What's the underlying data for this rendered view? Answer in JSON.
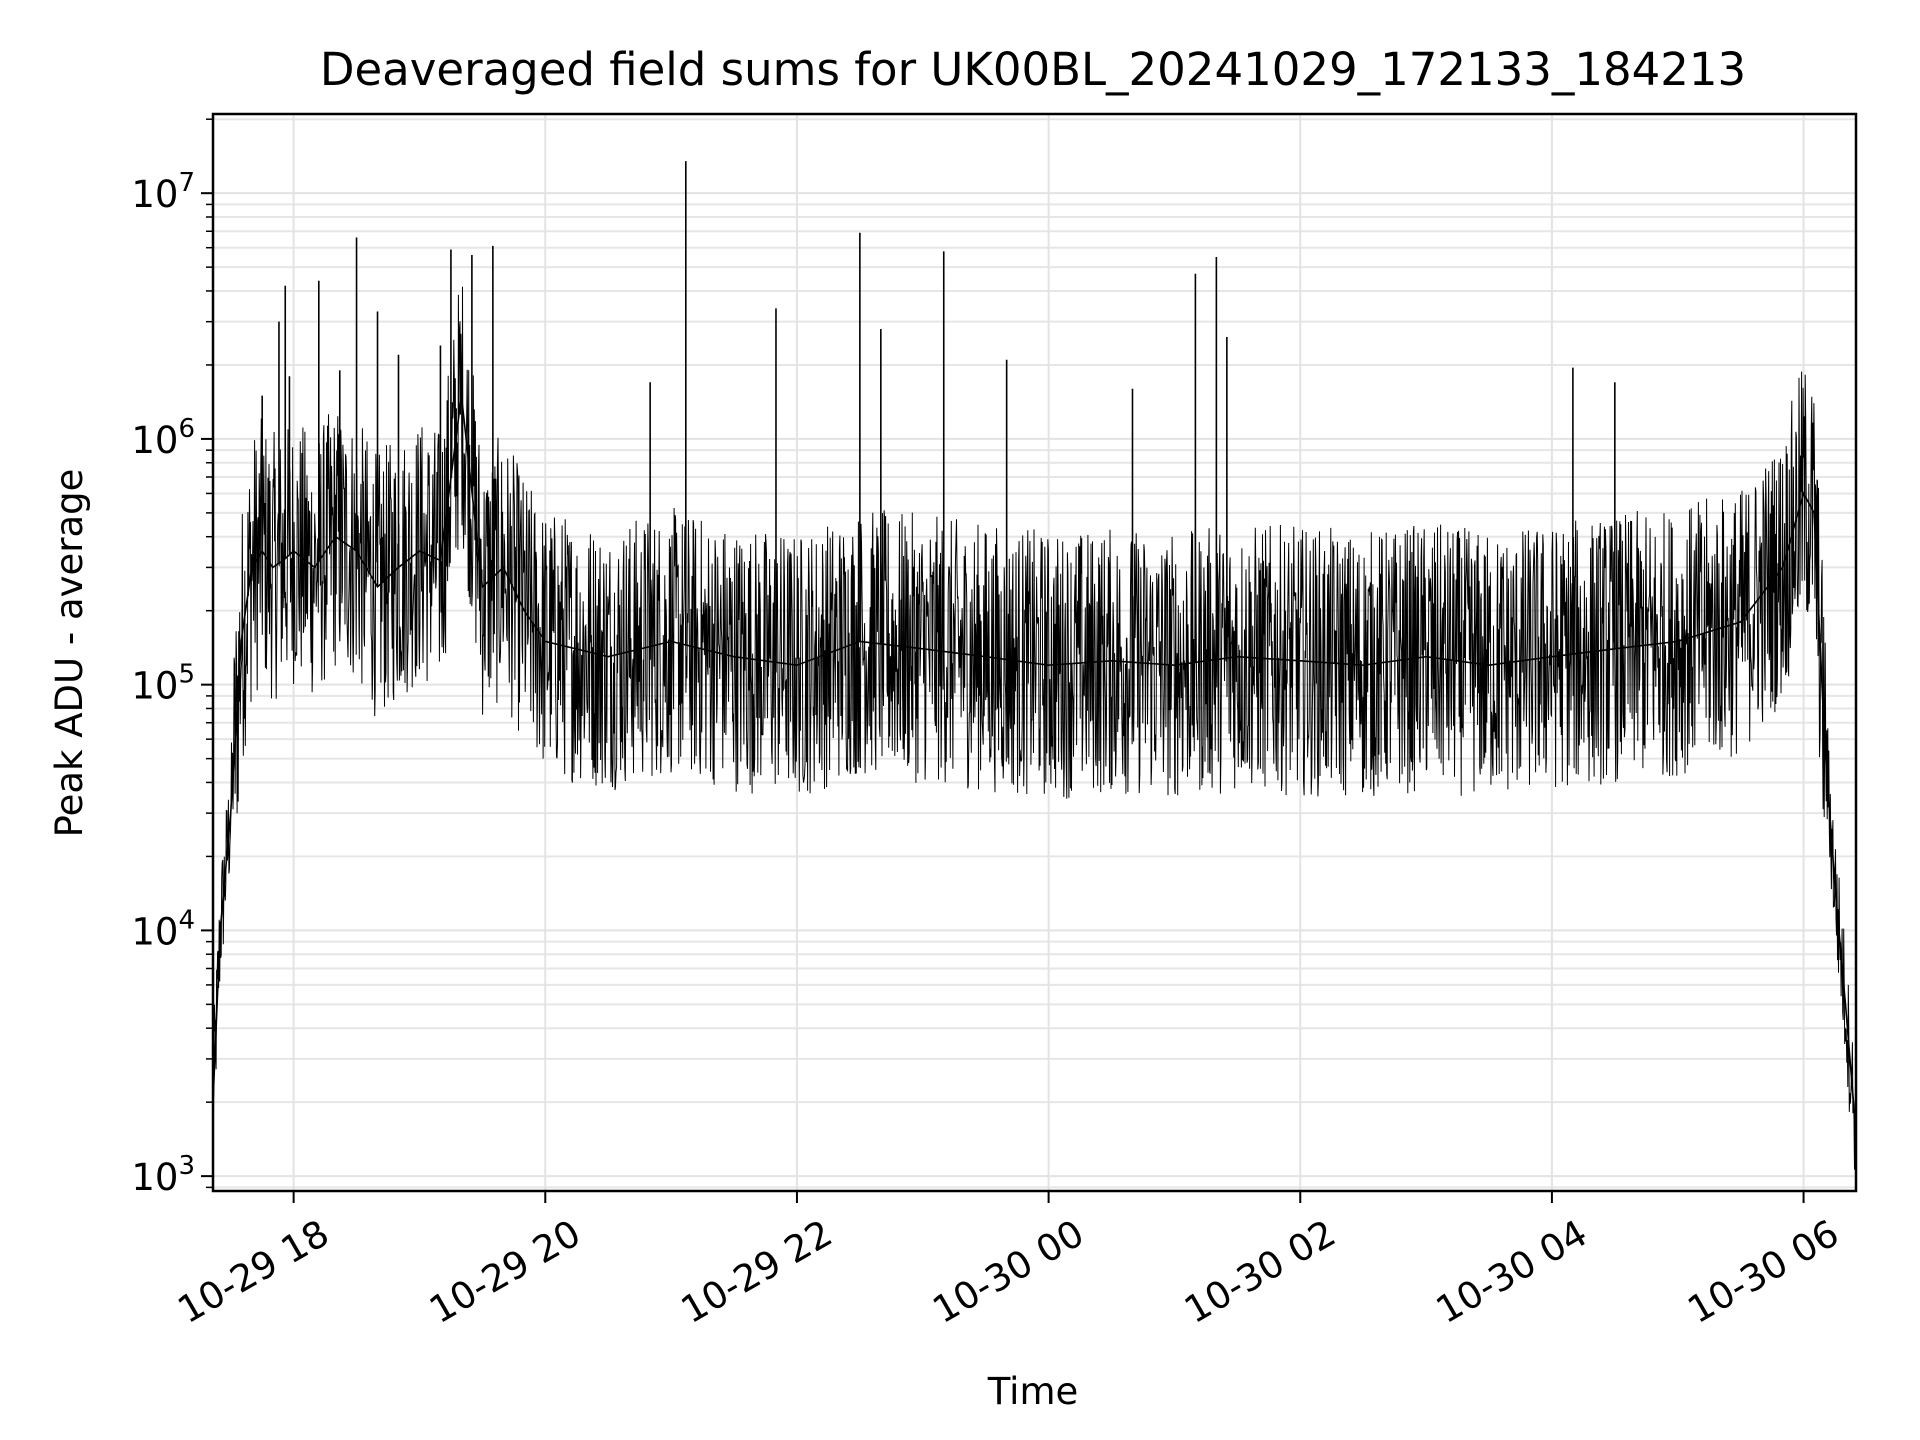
{
  "chart_data": {
    "type": "line",
    "title": "Deaveraged field sums for UK00BL_20241029_172133_184213",
    "xlabel": "Time",
    "ylabel": "Peak ADU - average",
    "yscale": "log",
    "ylim": [
      870,
      21000000
    ],
    "xlim": [
      "2024-10-29 17:21:33",
      "2024-10-30 06:25:00"
    ],
    "grid": true,
    "legend": "none",
    "line_color": "#000000",
    "x_ticks": [
      "10-29 18",
      "10-29 20",
      "10-29 22",
      "10-30 00",
      "10-30 02",
      "10-30 04",
      "10-30 06"
    ],
    "x_tick_times": [
      "2024-10-29 18:00",
      "2024-10-29 20:00",
      "2024-10-29 22:00",
      "2024-10-30 00:00",
      "2024-10-30 02:00",
      "2024-10-30 04:00",
      "2024-10-30 06:00"
    ],
    "y_ticks": [
      {
        "exp": "3",
        "value": 1000
      },
      {
        "exp": "4",
        "value": 10000
      },
      {
        "exp": "5",
        "value": 100000
      },
      {
        "exp": "6",
        "value": 1000000
      },
      {
        "exp": "7",
        "value": 10000000
      }
    ],
    "series": [
      {
        "x": [
          "2024-10-29 17:21:33",
          "2024-10-29 17:25",
          "2024-10-29 17:30",
          "2024-10-29 17:35",
          "2024-10-29 17:40",
          "2024-10-29 17:45",
          "2024-10-29 17:50",
          "2024-10-29 17:55",
          "2024-10-29 18:00",
          "2024-10-29 18:10",
          "2024-10-29 18:20",
          "2024-10-29 18:30",
          "2024-10-29 18:40",
          "2024-10-29 18:50",
          "2024-10-29 19:00",
          "2024-10-29 19:10",
          "2024-10-29 19:20",
          "2024-10-29 19:30",
          "2024-10-29 19:40",
          "2024-10-29 19:50",
          "2024-10-29 20:00",
          "2024-10-29 20:30",
          "2024-10-29 21:00",
          "2024-10-29 21:30",
          "2024-10-29 22:00",
          "2024-10-29 22:30",
          "2024-10-29 23:00",
          "2024-10-29 23:30",
          "2024-10-30 00:00",
          "2024-10-30 00:30",
          "2024-10-30 01:00",
          "2024-10-30 01:30",
          "2024-10-30 02:00",
          "2024-10-30 02:30",
          "2024-10-30 03:00",
          "2024-10-30 03:30",
          "2024-10-30 04:00",
          "2024-10-30 04:30",
          "2024-10-30 05:00",
          "2024-10-30 05:30",
          "2024-10-30 05:50",
          "2024-10-30 06:00",
          "2024-10-30 06:05",
          "2024-10-30 06:10",
          "2024-10-30 06:15",
          "2024-10-30 06:20",
          "2024-10-30 06:25"
        ],
        "y": [
          2000,
          10000,
          30000,
          150000,
          300000,
          350000,
          300000,
          320000,
          350000,
          300000,
          400000,
          350000,
          250000,
          300000,
          350000,
          320000,
          1500000,
          250000,
          300000,
          200000,
          150000,
          130000,
          150000,
          130000,
          120000,
          150000,
          140000,
          130000,
          120000,
          125000,
          120000,
          130000,
          125000,
          120000,
          130000,
          120000,
          130000,
          140000,
          150000,
          180000,
          300000,
          600000,
          500000,
          60000,
          15000,
          5000,
          1500
        ]
      }
    ],
    "spikes": [
      {
        "x": "2024-10-29 17:45",
        "y": 1500000
      },
      {
        "x": "2024-10-29 17:53",
        "y": 3000000
      },
      {
        "x": "2024-10-29 17:56",
        "y": 4200000
      },
      {
        "x": "2024-10-29 17:58",
        "y": 1800000
      },
      {
        "x": "2024-10-29 18:12",
        "y": 4400000
      },
      {
        "x": "2024-10-29 18:22",
        "y": 1900000
      },
      {
        "x": "2024-10-29 18:30",
        "y": 6600000
      },
      {
        "x": "2024-10-29 18:40",
        "y": 3300000
      },
      {
        "x": "2024-10-29 18:50",
        "y": 2200000
      },
      {
        "x": "2024-10-29 19:10",
        "y": 2400000
      },
      {
        "x": "2024-10-29 19:15",
        "y": 5900000
      },
      {
        "x": "2024-10-29 19:25",
        "y": 5600000
      },
      {
        "x": "2024-10-29 19:35",
        "y": 6100000
      },
      {
        "x": "2024-10-29 20:50",
        "y": 1700000
      },
      {
        "x": "2024-10-29 21:07",
        "y": 13500000
      },
      {
        "x": "2024-10-29 21:50",
        "y": 3400000
      },
      {
        "x": "2024-10-29 22:30",
        "y": 6900000
      },
      {
        "x": "2024-10-29 22:40",
        "y": 2800000
      },
      {
        "x": "2024-10-29 23:10",
        "y": 5800000
      },
      {
        "x": "2024-10-29 23:40",
        "y": 2100000
      },
      {
        "x": "2024-10-30 00:40",
        "y": 1600000
      },
      {
        "x": "2024-10-30 01:10",
        "y": 4700000
      },
      {
        "x": "2024-10-30 01:20",
        "y": 5500000
      },
      {
        "x": "2024-10-30 01:25",
        "y": 2600000
      },
      {
        "x": "2024-10-30 04:10",
        "y": 1950000
      },
      {
        "x": "2024-10-30 04:30",
        "y": 1700000
      }
    ]
  }
}
